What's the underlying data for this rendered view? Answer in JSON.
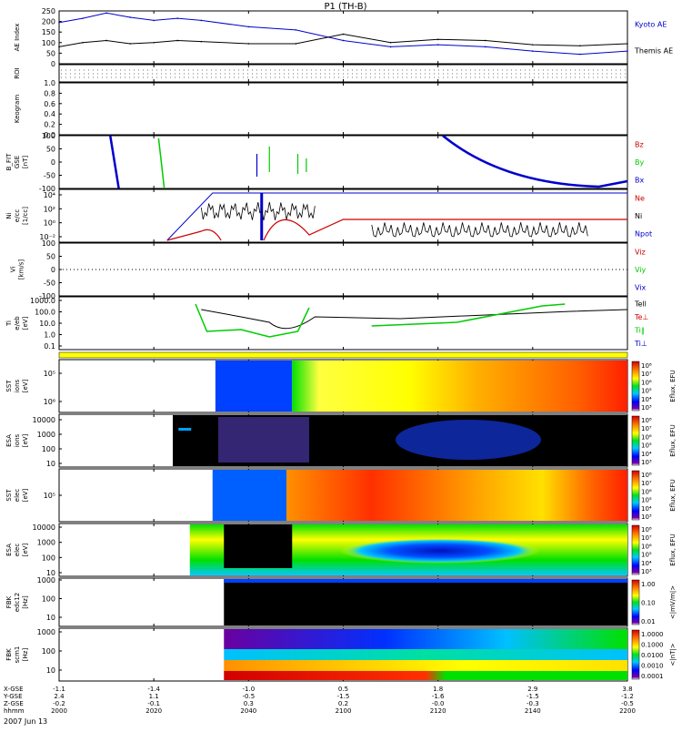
{
  "title": "P1 (TH-B)",
  "date": "2007 Jun 13",
  "x_axis": {
    "row_labels": [
      "X-GSE",
      "Y-GSE",
      "Z-GSE",
      "hhmm"
    ],
    "ticks": [
      {
        "x": "-1.1",
        "y": "2.4",
        "z": "-0.2",
        "t": "2000"
      },
      {
        "x": "-1.4",
        "y": "1.1",
        "z": "-0.1",
        "t": "2020"
      },
      {
        "x": "-1.0",
        "y": "-0.5",
        "z": "0.3",
        "t": "2040"
      },
      {
        "x": "0.5",
        "y": "-1.5",
        "z": "0.2",
        "t": "2100"
      },
      {
        "x": "1.8",
        "y": "-1.6",
        "z": "-0.0",
        "t": "2120"
      },
      {
        "x": "2.9",
        "y": "-1.5",
        "z": "-0.3",
        "t": "2140"
      },
      {
        "x": "3.8",
        "y": "-1.2",
        "z": "-0.5",
        "t": "2200"
      }
    ]
  },
  "panels": {
    "ae": {
      "ylabel": "AE Index",
      "ticks": [
        "250",
        "200",
        "150",
        "100",
        "50",
        "0"
      ],
      "legend": [
        {
          "text": "Kyoto AE",
          "color": "#0000cc"
        },
        {
          "text": "Themis AE",
          "color": "#000000"
        }
      ]
    },
    "roi": {
      "ylabel": "ROI"
    },
    "keogram": {
      "ylabel": "Keogram",
      "ticks": [
        "1.0",
        "0.8",
        "0.6",
        "0.4",
        "0.2",
        "0.0"
      ]
    },
    "bfit": {
      "ylabel_lines": [
        "B_FIT",
        "GSE",
        "[nT]"
      ],
      "ticks": [
        "100",
        "50",
        "0",
        "-50",
        "-100"
      ],
      "legend": [
        {
          "text": "Bz",
          "color": "#cc0000"
        },
        {
          "text": "By",
          "color": "#00cc00"
        },
        {
          "text": "Bx",
          "color": "#0000cc"
        }
      ]
    },
    "ni": {
      "ylabel_lines": [
        "Ni",
        "e/cc",
        "[1/cc]"
      ],
      "ticks": [
        "10⁴",
        "10²",
        "10⁰",
        "10⁻²"
      ],
      "legend": [
        {
          "text": "Ne",
          "color": "#cc0000"
        },
        {
          "text": "Ni",
          "color": "#000000"
        },
        {
          "text": "Npot",
          "color": "#0000cc"
        }
      ]
    },
    "vi": {
      "ylabel_lines": [
        "Vi",
        "[km/s]"
      ],
      "ticks": [
        "100",
        "50",
        "0",
        "-50",
        "-100"
      ],
      "legend": [
        {
          "text": "Viz",
          "color": "#cc0000"
        },
        {
          "text": "Viy",
          "color": "#00cc00"
        },
        {
          "text": "Vix",
          "color": "#0000cc"
        }
      ]
    },
    "ti": {
      "ylabel_lines": [
        "Ti",
        "e/eb",
        "[eV]"
      ],
      "ticks": [
        "1000.0",
        "100.0",
        "10.0",
        "1.0",
        "0.1"
      ],
      "legend": [
        {
          "text": "Tell",
          "color": "#000000"
        },
        {
          "text": "Te⊥",
          "color": "#cc0000"
        },
        {
          "text": "Ti‖",
          "color": "#00cc00"
        },
        {
          "text": "Ti⊥",
          "color": "#0000cc"
        }
      ]
    },
    "sst_i": {
      "ylabel_lines": [
        "SST",
        "ions",
        "[eV]"
      ],
      "ticks": [
        "10⁵",
        "10⁶"
      ],
      "cbar_label": "Eflux, EFU",
      "cbar_ticks": [
        "10⁸",
        "10⁷",
        "10⁶",
        "10⁵",
        "10⁴",
        "10³"
      ]
    },
    "esa_i": {
      "ylabel_lines": [
        "ESA",
        "ions",
        "[eV]"
      ],
      "ticks": [
        "10000",
        "1000",
        "100",
        "10"
      ],
      "cbar_label": "Eflux, EFU",
      "cbar_ticks": [
        "10⁸",
        "10⁷",
        "10⁶",
        "10⁵",
        "10⁴",
        "10³"
      ]
    },
    "sst_e": {
      "ylabel_lines": [
        "SST",
        "elec",
        "[eV]"
      ],
      "ticks": [
        "10⁵"
      ],
      "cbar_label": "Eflux, EFU",
      "cbar_ticks": [
        "10⁸",
        "10⁷",
        "10⁶",
        "10⁵",
        "10⁴",
        "10³"
      ]
    },
    "esa_e": {
      "ylabel_lines": [
        "ESA",
        "elec",
        "[eV]"
      ],
      "ticks": [
        "10000",
        "1000",
        "100",
        "10"
      ],
      "cbar_label": "Eflux, EFU",
      "cbar_ticks": [
        "10⁸",
        "10⁷",
        "10⁶",
        "10⁵",
        "10⁴",
        "10³"
      ]
    },
    "fbk1": {
      "ylabel_lines": [
        "FBK",
        "edc12",
        "[Hz]"
      ],
      "ticks": [
        "1000",
        "100",
        "10"
      ],
      "cbar_label": "<|mV/m|>",
      "cbar_ticks": [
        "1.00",
        "0.10",
        "0.01"
      ]
    },
    "fbk2": {
      "ylabel_lines": [
        "FBK",
        "scm1",
        "[Hz]"
      ],
      "ticks": [
        "1000",
        "100",
        "10"
      ],
      "cbar_label": "<|nT|>",
      "cbar_ticks": [
        "1.0000",
        "0.1000",
        "0.0100",
        "0.0010",
        "0.0001"
      ]
    }
  },
  "chart_data": {
    "type": "line",
    "title": "P1 (TH-B)",
    "x_unit": "hhmm",
    "xlim": [
      "2000",
      "2200"
    ],
    "series": [
      {
        "name": "Kyoto AE",
        "x": [
          "2000",
          "2005",
          "2010",
          "2015",
          "2020",
          "2025",
          "2030",
          "2040",
          "2050",
          "2100",
          "2110",
          "2120",
          "2130",
          "2140",
          "2150",
          "2200"
        ],
        "values": [
          195,
          215,
          240,
          220,
          205,
          215,
          205,
          175,
          160,
          110,
          80,
          90,
          80,
          60,
          45,
          60
        ]
      },
      {
        "name": "Themis AE",
        "x": [
          "2000",
          "2005",
          "2010",
          "2015",
          "2020",
          "2025",
          "2030",
          "2040",
          "2050",
          "2100",
          "2110",
          "2120",
          "2130",
          "2140",
          "2150",
          "2200"
        ],
        "values": [
          80,
          100,
          110,
          95,
          100,
          110,
          105,
          95,
          95,
          140,
          100,
          115,
          110,
          90,
          85,
          95
        ]
      }
    ]
  }
}
